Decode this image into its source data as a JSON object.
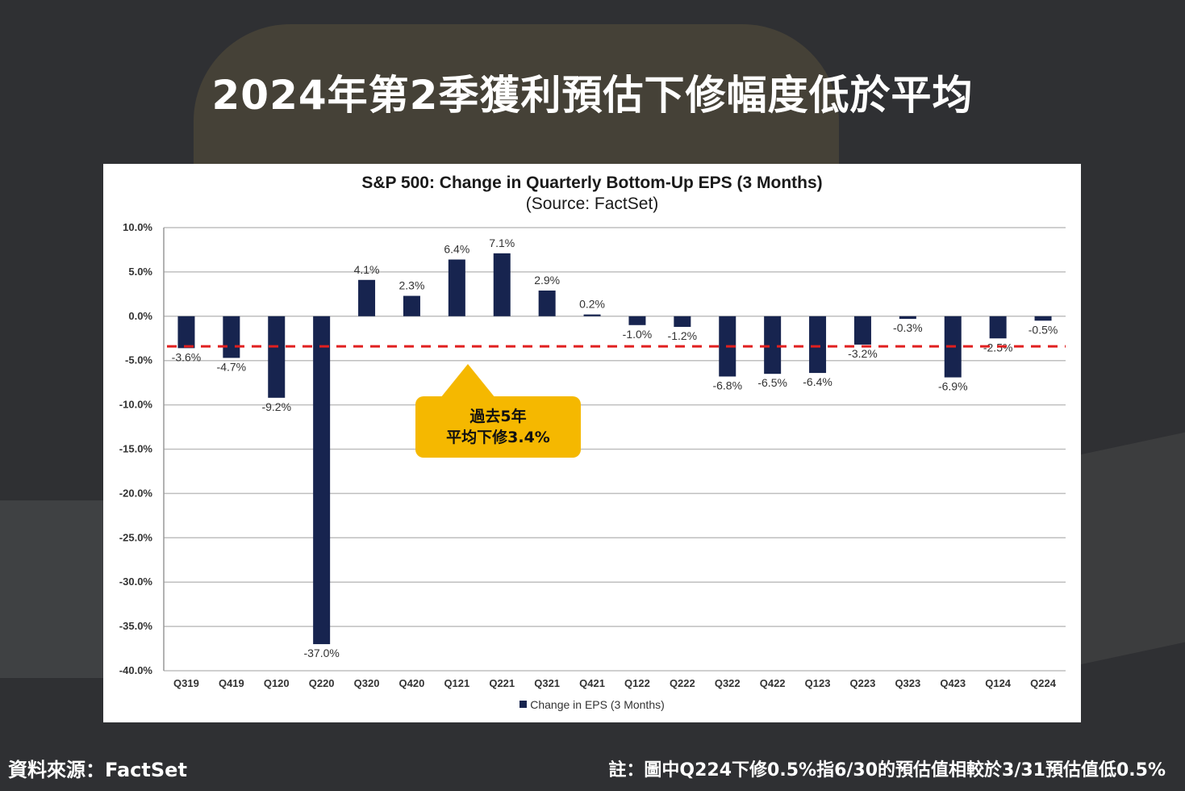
{
  "headline": "2024年第2季獲利預估下修幅度低於平均",
  "colors": {
    "background": "#2f3033",
    "bar": "#17244f",
    "average_line": "#e01f1f",
    "callout": "#f5b800"
  },
  "callout": {
    "line1": "過去5年",
    "line2": "平均下修3.4%"
  },
  "source_note": "資料來源：FactSet",
  "footnote": "註：圖中Q224下修0.5%指6/30的預估值相較於3/31預估值低0.5%",
  "chart_data": {
    "type": "bar",
    "title": "S&P 500: Change in Quarterly Bottom-Up EPS (3 Months)",
    "subtitle": "(Source: FactSet)",
    "categories": [
      "Q319",
      "Q419",
      "Q120",
      "Q220",
      "Q320",
      "Q420",
      "Q121",
      "Q221",
      "Q321",
      "Q421",
      "Q122",
      "Q222",
      "Q322",
      "Q422",
      "Q123",
      "Q223",
      "Q323",
      "Q423",
      "Q124",
      "Q224"
    ],
    "series": [
      {
        "name": "Change in EPS (3 Months)",
        "values": [
          -3.6,
          -4.7,
          -9.2,
          -37.0,
          4.1,
          2.3,
          6.4,
          7.1,
          2.9,
          0.2,
          -1.0,
          -1.2,
          -6.8,
          -6.5,
          -6.4,
          -3.2,
          -0.3,
          -6.9,
          -2.5,
          -0.5
        ],
        "labels": [
          "-3.6%",
          "-4.7%",
          "-9.2%",
          "-37.0%",
          "4.1%",
          "2.3%",
          "6.4%",
          "7.1%",
          "2.9%",
          "0.2%",
          "-1.0%",
          "-1.2%",
          "-6.8%",
          "-6.5%",
          "-6.4%",
          "-3.2%",
          "-0.3%",
          "-6.9%",
          "-2.5%",
          "-0.5%"
        ]
      }
    ],
    "average_line": -3.4,
    "ylim": [
      -40,
      10
    ],
    "yticks": [
      10,
      5,
      0,
      -5,
      -10,
      -15,
      -20,
      -25,
      -30,
      -35,
      -40
    ],
    "ytick_labels": [
      "10.0%",
      "5.0%",
      "0.0%",
      "-5.0%",
      "-10.0%",
      "-15.0%",
      "-20.0%",
      "-25.0%",
      "-30.0%",
      "-35.0%",
      "-40.0%"
    ],
    "grid": true,
    "legend_position": "bottom"
  }
}
